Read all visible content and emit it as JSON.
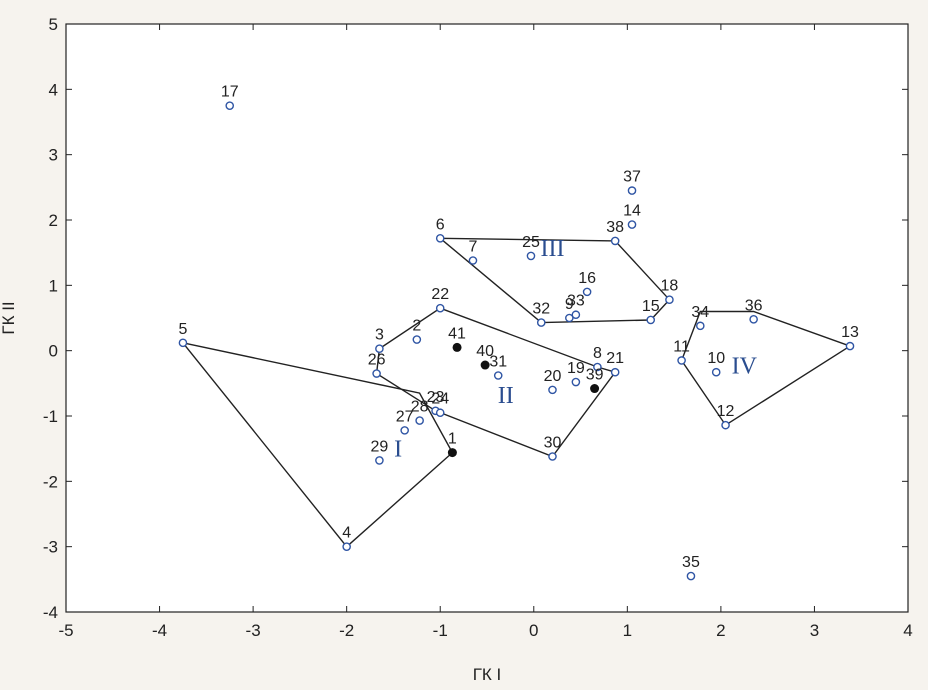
{
  "chart_data": {
    "type": "scatter",
    "xlabel": "ГК I",
    "ylabel": "ГК II",
    "xlim": [
      -5,
      4
    ],
    "ylim": [
      -4,
      5
    ],
    "xticks": [
      -5,
      -4,
      -3,
      -2,
      -1,
      0,
      1,
      2,
      3,
      4
    ],
    "yticks": [
      -4,
      -3,
      -2,
      -1,
      0,
      1,
      2,
      3,
      4,
      5
    ],
    "grid": false,
    "colors": {
      "hollow": "#2f55a4",
      "filled": "#111111",
      "hull": "#222222"
    },
    "points": [
      {
        "label": "1",
        "x": -0.87,
        "y": -1.56,
        "filled": true
      },
      {
        "label": "2",
        "x": -1.25,
        "y": 0.17
      },
      {
        "label": "3",
        "x": -1.65,
        "y": 0.03
      },
      {
        "label": "4",
        "x": -2.0,
        "y": -3.0
      },
      {
        "label": "5",
        "x": -3.75,
        "y": 0.12
      },
      {
        "label": "6",
        "x": -1.0,
        "y": 1.72
      },
      {
        "label": "7",
        "x": -0.65,
        "y": 1.38
      },
      {
        "label": "8",
        "x": 0.68,
        "y": -0.25
      },
      {
        "label": "9",
        "x": 0.38,
        "y": 0.5
      },
      {
        "label": "10",
        "x": 1.95,
        "y": -0.33
      },
      {
        "label": "11",
        "x": 1.58,
        "y": -0.15
      },
      {
        "label": "12",
        "x": 2.05,
        "y": -1.14
      },
      {
        "label": "13",
        "x": 3.38,
        "y": 0.07
      },
      {
        "label": "14",
        "x": 1.05,
        "y": 1.93
      },
      {
        "label": "15",
        "x": 1.25,
        "y": 0.47
      },
      {
        "label": "16",
        "x": 0.57,
        "y": 0.9
      },
      {
        "label": "17",
        "x": -3.25,
        "y": 3.75
      },
      {
        "label": "18",
        "x": 1.45,
        "y": 0.78
      },
      {
        "label": "19",
        "x": 0.45,
        "y": -0.48
      },
      {
        "label": "20",
        "x": 0.2,
        "y": -0.6
      },
      {
        "label": "21",
        "x": 0.87,
        "y": -0.33
      },
      {
        "label": "22",
        "x": -1.0,
        "y": 0.65
      },
      {
        "label": "23",
        "x": -1.05,
        "y": -0.92
      },
      {
        "label": "24",
        "x": -1.0,
        "y": -0.95
      },
      {
        "label": "25",
        "x": -0.03,
        "y": 1.45
      },
      {
        "label": "26",
        "x": -1.68,
        "y": -0.35
      },
      {
        "label": "27",
        "x": -1.38,
        "y": -1.22
      },
      {
        "label": "28",
        "x": -1.22,
        "y": -1.07
      },
      {
        "label": "29",
        "x": -1.65,
        "y": -1.68
      },
      {
        "label": "30",
        "x": 0.2,
        "y": -1.62
      },
      {
        "label": "31",
        "x": -0.38,
        "y": -0.38
      },
      {
        "label": "32",
        "x": 0.08,
        "y": 0.43
      },
      {
        "label": "33",
        "x": 0.45,
        "y": 0.55
      },
      {
        "label": "34",
        "x": 1.78,
        "y": 0.38
      },
      {
        "label": "35",
        "x": 1.68,
        "y": -3.45
      },
      {
        "label": "36",
        "x": 2.35,
        "y": 0.48
      },
      {
        "label": "37",
        "x": 1.05,
        "y": 2.45
      },
      {
        "label": "38",
        "x": 0.87,
        "y": 1.68
      },
      {
        "label": "39",
        "x": 0.65,
        "y": -0.58,
        "filled": true
      },
      {
        "label": "40",
        "x": -0.52,
        "y": -0.22,
        "filled": true
      },
      {
        "label": "41",
        "x": -0.82,
        "y": 0.05,
        "filled": true
      }
    ],
    "groups": [
      {
        "label": "I",
        "hull": [
          [
            -3.75,
            0.12
          ],
          [
            -1.22,
            -0.65
          ],
          [
            -0.87,
            -1.56
          ],
          [
            -2.0,
            -3.0
          ]
        ]
      },
      {
        "label": "II",
        "hull": [
          [
            -1.65,
            0.03
          ],
          [
            -1.0,
            0.65
          ],
          [
            0.68,
            -0.25
          ],
          [
            0.87,
            -0.33
          ],
          [
            0.2,
            -1.62
          ],
          [
            -1.05,
            -0.92
          ],
          [
            -1.68,
            -0.35
          ]
        ]
      },
      {
        "label": "III",
        "hull": [
          [
            -1.0,
            1.72
          ],
          [
            0.87,
            1.68
          ],
          [
            1.45,
            0.78
          ],
          [
            1.25,
            0.47
          ],
          [
            0.08,
            0.43
          ]
        ]
      },
      {
        "label": "IV",
        "hull": [
          [
            1.78,
            0.6
          ],
          [
            2.35,
            0.6
          ],
          [
            3.38,
            0.07
          ],
          [
            2.05,
            -1.14
          ],
          [
            1.58,
            -0.15
          ]
        ]
      }
    ],
    "group_labels": [
      {
        "text": "I",
        "x": -1.45,
        "y": -1.62
      },
      {
        "text": "II",
        "x": -0.3,
        "y": -0.8
      },
      {
        "text": "III",
        "x": 0.2,
        "y": 1.45
      },
      {
        "text": "IV",
        "x": 2.25,
        "y": -0.35
      }
    ]
  }
}
